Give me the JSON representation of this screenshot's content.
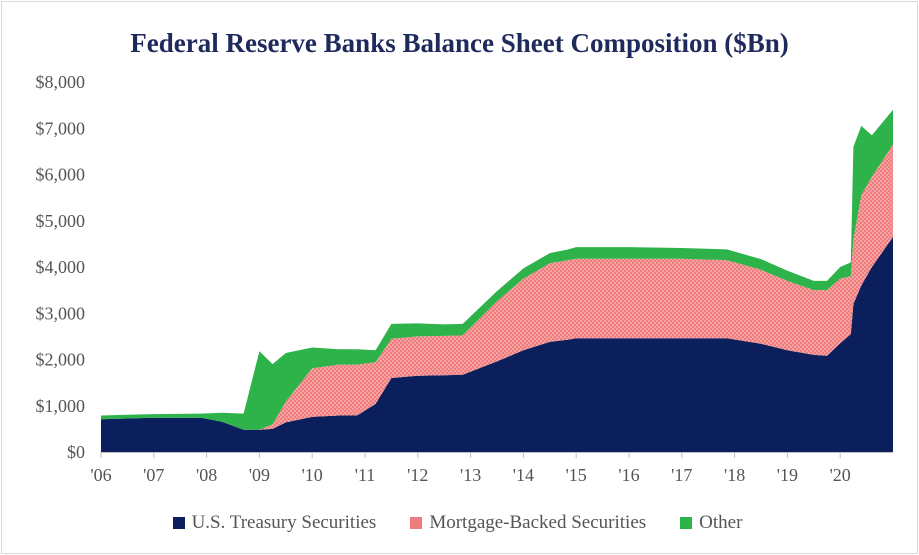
{
  "chart_data": {
    "type": "area",
    "stacked": true,
    "title": "Federal Reserve Banks Balance Sheet Composition ($Bn)",
    "xlabel": "",
    "ylabel": "",
    "ylim": [
      0,
      8000
    ],
    "yticks": [
      "$0",
      "$1,000",
      "$2,000",
      "$3,000",
      "$4,000",
      "$5,000",
      "$6,000",
      "$7,000",
      "$8,000"
    ],
    "xticks": [
      "'06",
      "'07",
      "'08",
      "'09",
      "'10",
      "'11",
      "'12",
      "'13",
      "'14",
      "'15",
      "'16",
      "'17",
      "'18",
      "'19",
      "'20"
    ],
    "xlim": [
      2006.0,
      2021.0
    ],
    "legend_position": "bottom",
    "grid": false,
    "x": [
      2006.0,
      2007.0,
      2007.9,
      2008.3,
      2008.7,
      2009.0,
      2009.25,
      2009.5,
      2010.0,
      2010.5,
      2010.85,
      2011.2,
      2011.5,
      2012.0,
      2012.5,
      2012.85,
      2013.5,
      2014.0,
      2014.5,
      2014.85,
      2015.0,
      2016.0,
      2017.0,
      2017.85,
      2018.5,
      2019.0,
      2019.5,
      2019.75,
      2020.0,
      2020.2,
      2020.25,
      2020.4,
      2020.6,
      2021.0
    ],
    "series": [
      {
        "name": "U.S. Treasury Securities",
        "color": "#0b1f5c",
        "values": [
          710,
          740,
          740,
          650,
          480,
          480,
          500,
          640,
          760,
          790,
          790,
          1040,
          1600,
          1650,
          1660,
          1670,
          1960,
          2200,
          2380,
          2430,
          2460,
          2460,
          2460,
          2460,
          2340,
          2200,
          2100,
          2080,
          2350,
          2550,
          3200,
          3600,
          4000,
          4650
        ]
      },
      {
        "name": "Mortgage-Backed Securities",
        "color": "#f28b82",
        "values": [
          0,
          0,
          0,
          0,
          0,
          0,
          100,
          450,
          1050,
          1100,
          1100,
          900,
          850,
          850,
          850,
          850,
          1300,
          1550,
          1700,
          1720,
          1720,
          1720,
          1720,
          1690,
          1600,
          1500,
          1400,
          1420,
          1400,
          1250,
          1400,
          1950,
          1950,
          2000
        ]
      },
      {
        "name": "Other",
        "color": "#2db34a",
        "values": [
          80,
          80,
          90,
          200,
          350,
          1700,
          1300,
          1050,
          450,
          330,
          330,
          260,
          320,
          280,
          250,
          250,
          220,
          220,
          220,
          230,
          250,
          250,
          230,
          230,
          230,
          220,
          200,
          200,
          250,
          300,
          2000,
          1500,
          900,
          750
        ]
      }
    ]
  }
}
